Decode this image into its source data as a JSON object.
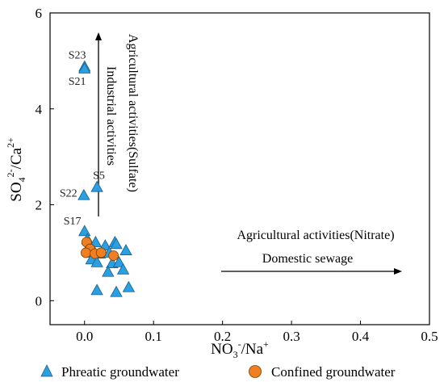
{
  "chart_data": {
    "type": "scatter",
    "xlim": [
      -0.05,
      0.5
    ],
    "ylim": [
      -0.5,
      6
    ],
    "x_ticks": [
      0.0,
      0.1,
      0.2,
      0.3,
      0.4,
      0.5
    ],
    "x_tick_labels": [
      "0.0",
      "0.1",
      "0.2",
      "0.3",
      "0.4",
      "0.5"
    ],
    "y_ticks": [
      0,
      2,
      4,
      6
    ],
    "y_tick_labels": [
      "0",
      "2",
      "4",
      "6"
    ],
    "legend_position": "bottom",
    "series": [
      {
        "name": "Phreatic groundwater",
        "marker": "triangle",
        "color": "#2a9fe2",
        "points": [
          {
            "x": 0.0,
            "y": 4.88,
            "label": "S23"
          },
          {
            "x": 0.0,
            "y": 4.84,
            "label": "S21"
          },
          {
            "x": 0.018,
            "y": 2.37,
            "label": "S5"
          },
          {
            "x": -0.001,
            "y": 2.2,
            "label": "S22"
          },
          {
            "x": 0.0,
            "y": 1.45,
            "label": "S17"
          },
          {
            "x": 0.004,
            "y": 1.28
          },
          {
            "x": 0.008,
            "y": 1.18
          },
          {
            "x": 0.016,
            "y": 1.22
          },
          {
            "x": 0.03,
            "y": 1.15
          },
          {
            "x": 0.044,
            "y": 1.22
          },
          {
            "x": 0.046,
            "y": 1.18
          },
          {
            "x": 0.06,
            "y": 1.05
          },
          {
            "x": 0.012,
            "y": 1.0
          },
          {
            "x": 0.022,
            "y": 0.98
          },
          {
            "x": 0.036,
            "y": 1.0
          },
          {
            "x": 0.01,
            "y": 0.86
          },
          {
            "x": 0.018,
            "y": 0.8
          },
          {
            "x": 0.04,
            "y": 0.78
          },
          {
            "x": 0.05,
            "y": 0.8
          },
          {
            "x": 0.056,
            "y": 0.65
          },
          {
            "x": 0.034,
            "y": 0.6
          },
          {
            "x": 0.018,
            "y": 0.22
          },
          {
            "x": 0.046,
            "y": 0.18
          },
          {
            "x": 0.064,
            "y": 0.28
          }
        ]
      },
      {
        "name": "Confined groundwater",
        "marker": "circle",
        "color": "#f07f22",
        "points": [
          {
            "x": 0.003,
            "y": 1.22
          },
          {
            "x": 0.008,
            "y": 1.08
          },
          {
            "x": 0.002,
            "y": 1.0
          },
          {
            "x": 0.015,
            "y": 0.98
          },
          {
            "x": 0.024,
            "y": 1.0
          },
          {
            "x": 0.042,
            "y": 0.94
          }
        ]
      }
    ],
    "annotations": [
      {
        "text": "Agricultural activities(Sulfate)",
        "orientation": "vertical"
      },
      {
        "text": "Industrial activities",
        "orientation": "vertical"
      },
      {
        "text": "Agricultural activities(Nitrate)",
        "orientation": "horizontal"
      },
      {
        "text": "Domestic sewage",
        "orientation": "horizontal"
      }
    ]
  }
}
